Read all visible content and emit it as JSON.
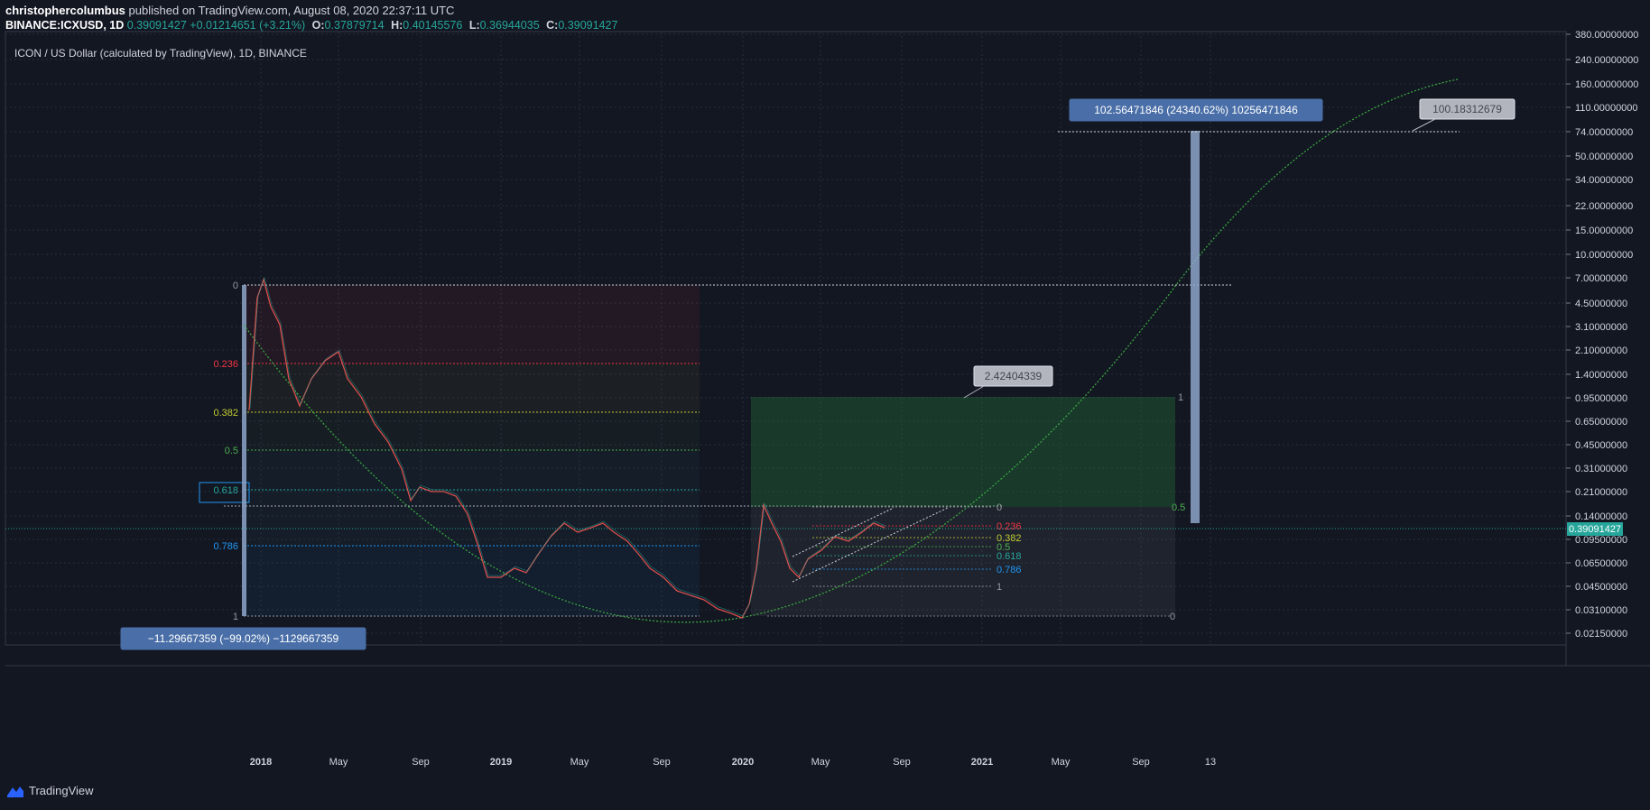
{
  "header": {
    "author": "christophercolumbus",
    "published_text": "published on TradingView.com, August 08, 2020 22:37:11 UTC",
    "symbol": "BINANCE:ICXUSD, 1D",
    "last": "0.39091427",
    "change": "+0.01214651 (+3.21%)",
    "o_label": "O:",
    "o": "0.37879714",
    "h_label": "H:",
    "h": "0.40145576",
    "l_label": "L:",
    "l": "0.36944035",
    "c_label": "C:",
    "c": "0.39091427"
  },
  "chart_title": "ICON / US Dollar (calculated by TradingView), 1D, BINANCE",
  "price_axis": {
    "ticks": [
      "380.00000000",
      "240.00000000",
      "160.00000000",
      "110.00000000",
      "74.00000000",
      "50.00000000",
      "34.00000000",
      "22.00000000",
      "15.00000000",
      "10.00000000",
      "7.00000000",
      "4.50000000",
      "3.10000000",
      "2.10000000",
      "1.40000000",
      "0.95000000",
      "0.65000000",
      "0.45000000",
      "0.31000000",
      "0.21000000",
      "0.14000000",
      "0.09500000",
      "0.06500000",
      "0.04500000",
      "0.03100000",
      "0.02150000"
    ],
    "current_price": "0.39091427"
  },
  "time_axis": [
    "2018",
    "May",
    "Sep",
    "2019",
    "May",
    "Sep",
    "2020",
    "May",
    "Sep",
    "2021",
    "May",
    "Sep",
    "13"
  ],
  "fib_left": {
    "levels": [
      "0",
      "0.236",
      "0.382",
      "0.5",
      "0.618",
      "0.786",
      "1"
    ]
  },
  "fib_right": {
    "levels": [
      "0",
      "0.236",
      "0.382",
      "0.5",
      "0.618",
      "0.786",
      "1"
    ]
  },
  "big_box_labels": {
    "top": "1",
    "mid": "0.5",
    "bottom": "0"
  },
  "callouts": {
    "measure_up": "102.56471846 (24340.62%) 10256471846",
    "measure_down": "−11.29667359 (−99.02%) −1129667359",
    "price_note_1": "2.42404339",
    "price_note_2": "100.18312679"
  },
  "footer": {
    "brand": "TradingView"
  },
  "colors": {
    "background": "#131722",
    "grid": "#2a2e39",
    "up": "#26a69a",
    "down": "#ef5350",
    "fib_236": "#f23645",
    "fib_382": "#c0ca33",
    "fib_5": "#4caf50",
    "fib_618": "#26a69a",
    "fib_786": "#2196f3",
    "callout_blue": "#4a6fa8",
    "curve": "#3cb043"
  }
}
